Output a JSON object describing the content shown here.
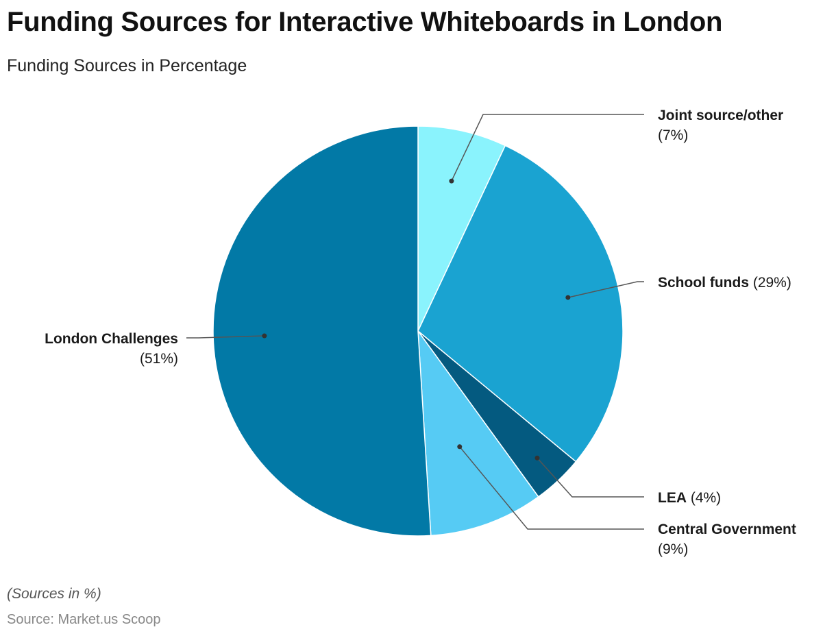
{
  "header": {
    "title": "Funding Sources for Interactive Whiteboards in London",
    "subtitle": "Funding Sources in Percentage"
  },
  "footer": {
    "note": "(Sources in %)",
    "source": "Source: Market.us Scoop"
  },
  "chart_data": {
    "type": "pie",
    "title": "Funding Sources for Interactive Whiteboards in London",
    "subtitle": "Funding Sources in Percentage",
    "slices": [
      {
        "label": "Joint source/other",
        "value": 7,
        "value_label": "(7%)",
        "color": "#8af3fd"
      },
      {
        "label": "School funds",
        "value": 29,
        "value_label": "(29%)",
        "color": "#1aa3d1"
      },
      {
        "label": "LEA",
        "value": 4,
        "value_label": "(4%)",
        "color": "#045a80"
      },
      {
        "label": "Central Government",
        "value": 9,
        "value_label": "(9%)",
        "color": "#56cbf4"
      },
      {
        "label": "London Challenges",
        "value": 51,
        "value_label": "(51%)",
        "color": "#0279a6"
      }
    ],
    "start_angle": "12 o'clock",
    "direction": "clockwise",
    "legend": "none"
  }
}
